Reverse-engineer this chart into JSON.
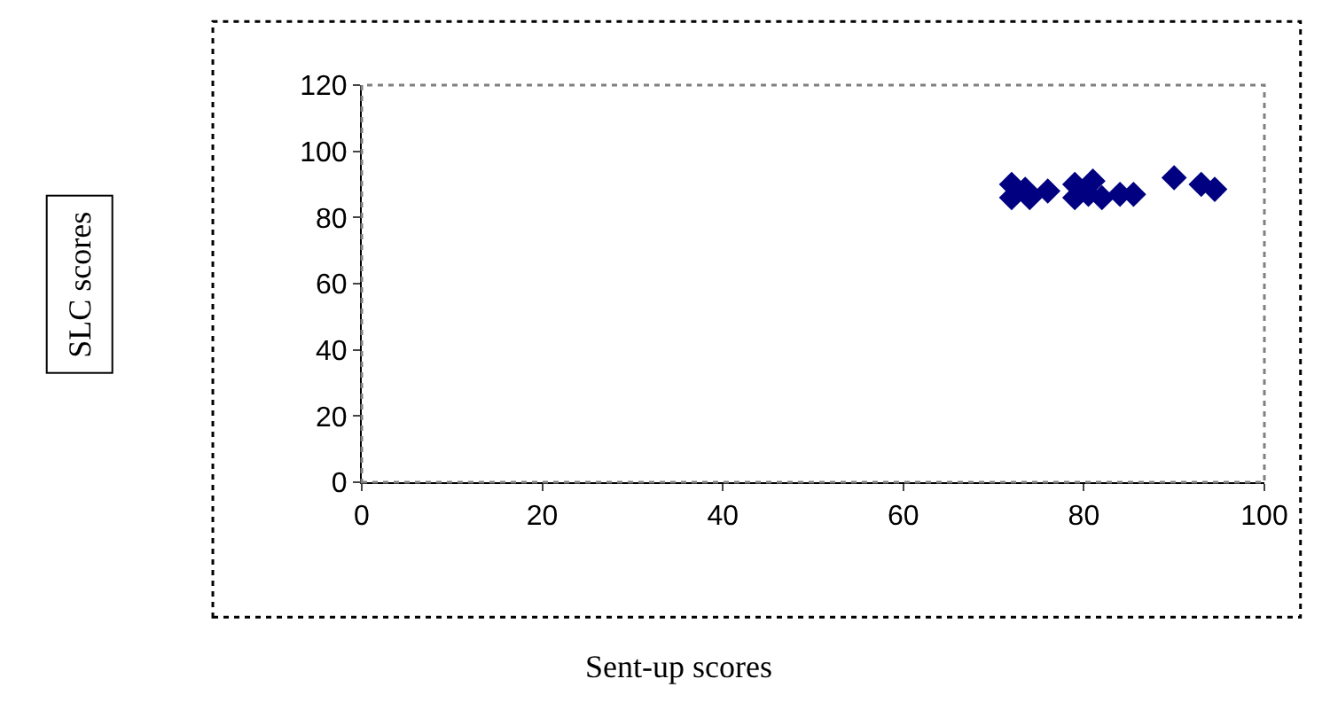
{
  "chart_data": {
    "type": "scatter",
    "xlabel": "Sent-up scores",
    "annotations": [
      "SLC scores"
    ],
    "x": [
      72,
      72,
      74,
      73.5,
      76,
      79,
      79,
      81,
      80.5,
      82,
      84,
      85.5,
      90,
      93,
      94.5
    ],
    "values": [
      90,
      86,
      86,
      88.5,
      88,
      90,
      86,
      91,
      87,
      86,
      87,
      87,
      92,
      90,
      88.5
    ],
    "color": "#000080",
    "marker": "diamond",
    "xlim": [
      0,
      100
    ],
    "xticks": [
      0,
      20,
      40,
      60,
      80,
      100
    ],
    "ylim": [
      0,
      120
    ],
    "yticks": [
      0,
      20,
      40,
      60,
      80,
      100,
      120
    ]
  }
}
